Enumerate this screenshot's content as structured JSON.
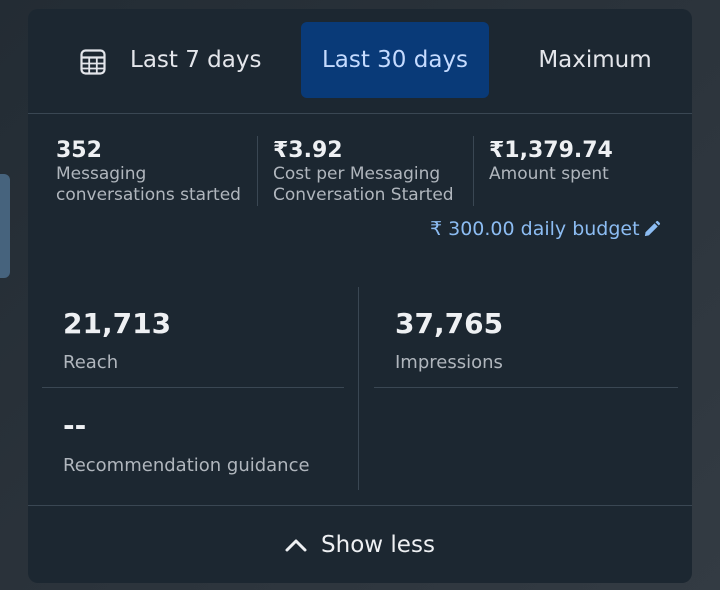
{
  "tabs": {
    "last_7": "Last 7 days",
    "last_30": "Last 30 days",
    "maximum": "Maximum",
    "active": "Last 30 days"
  },
  "stats": [
    {
      "value": "352",
      "label_line1": "Messaging",
      "label_line2": "conversations started"
    },
    {
      "value": "₹3.92",
      "label_line1": "Cost per Messaging",
      "label_line2": "Conversation Started"
    },
    {
      "value": "₹1,379.74",
      "label_line1": "Amount spent",
      "label_line2": ""
    }
  ],
  "budget": {
    "label": "₹ 300.00 daily budget"
  },
  "metrics": {
    "reach": {
      "value": "21,713",
      "label": "Reach"
    },
    "impressions": {
      "value": "37,765",
      "label": "Impressions"
    },
    "recommendation": {
      "value": "--",
      "label": "Recommendation guidance"
    }
  },
  "footer": {
    "show_less": "Show less"
  },
  "icons": {
    "calendar": "calendar-table-icon",
    "edit": "pencil-icon",
    "collapse": "chevron-up-icon"
  },
  "colors": {
    "panel_bg": "#1c2731",
    "active_tab_bg": "#093a78",
    "link": "#8cbcf2"
  }
}
